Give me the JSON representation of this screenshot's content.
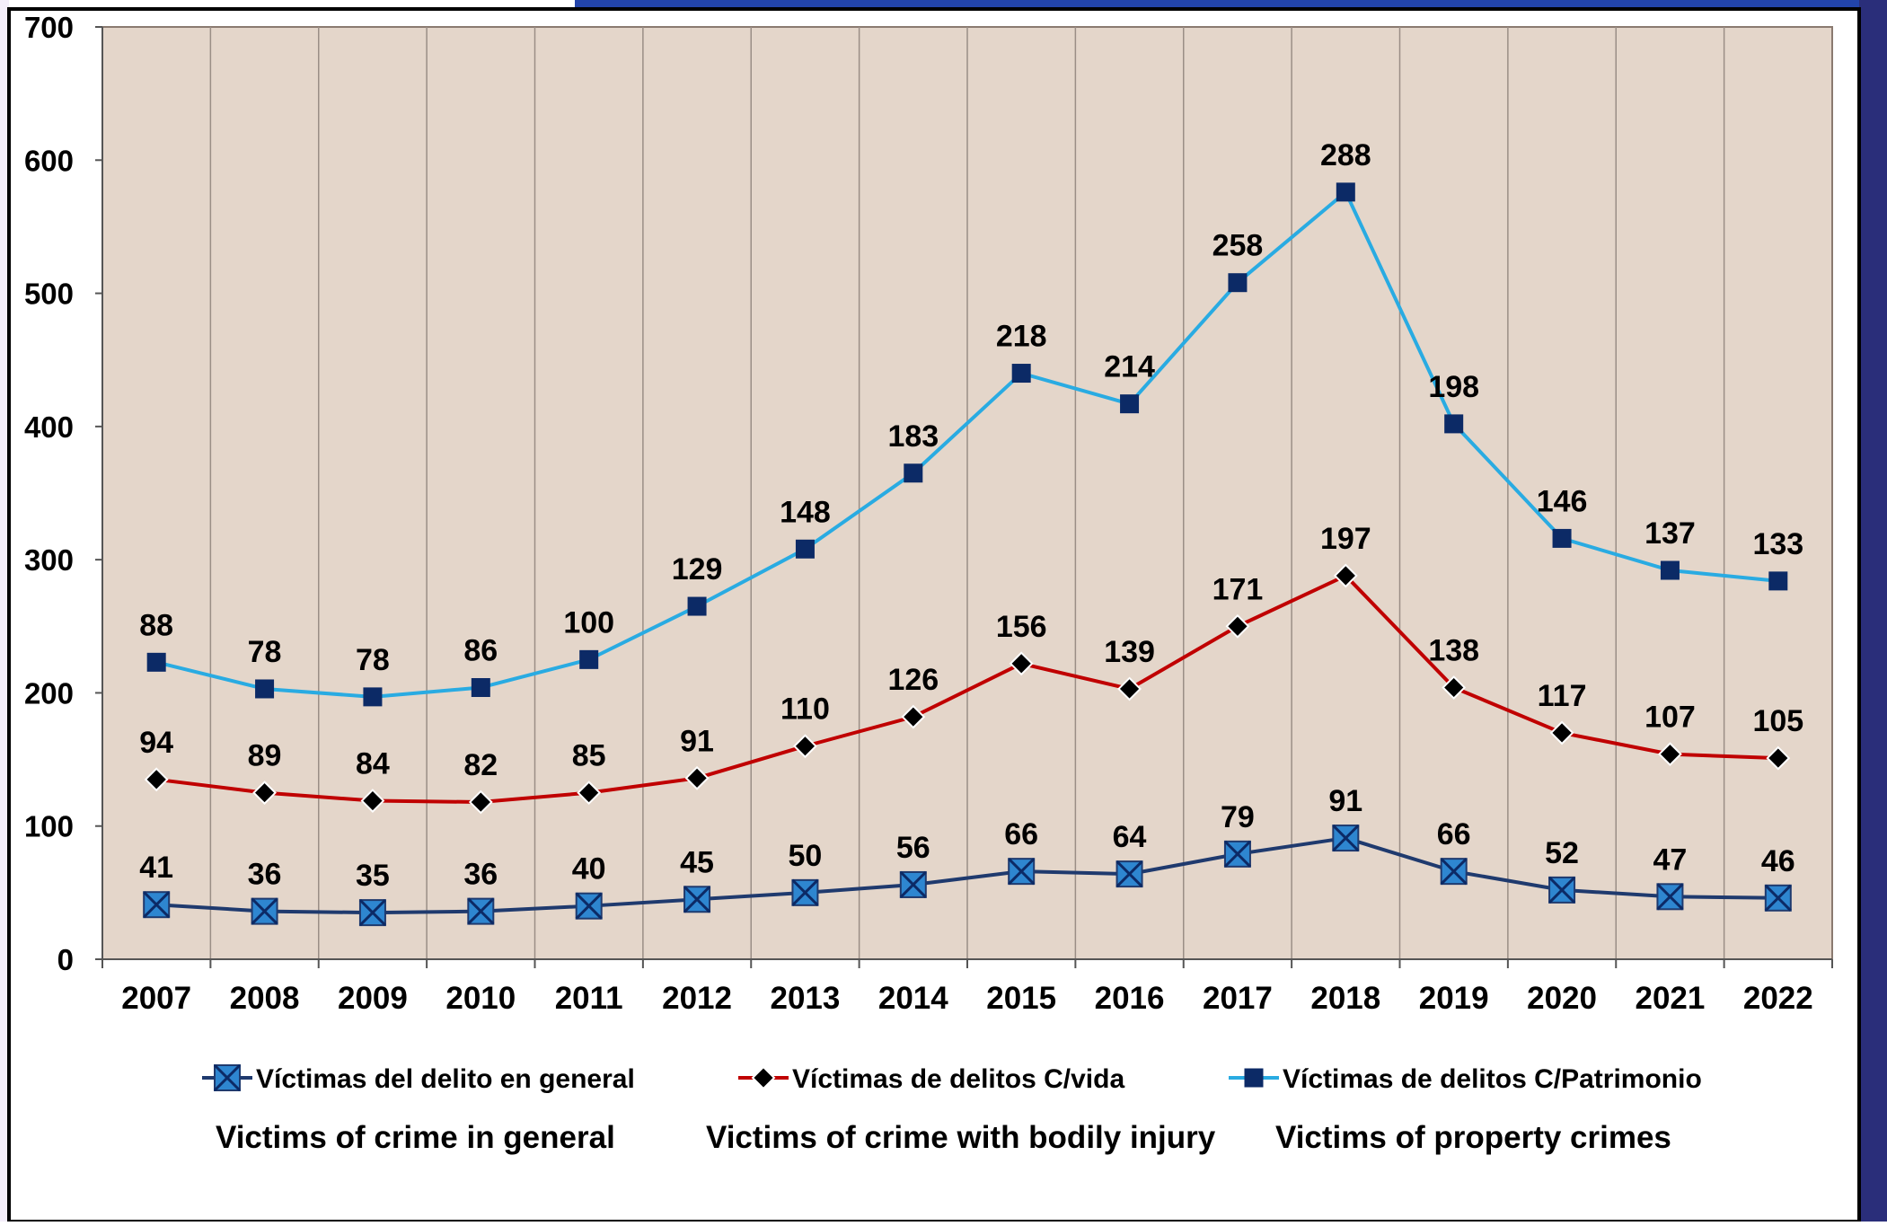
{
  "chart_data": {
    "type": "line",
    "categories": [
      "2007",
      "2008",
      "2009",
      "2010",
      "2011",
      "2012",
      "2013",
      "2014",
      "2015",
      "2016",
      "2017",
      "2018",
      "2019",
      "2020",
      "2021",
      "2022"
    ],
    "ylim": [
      0,
      700
    ],
    "yticks": [
      0,
      100,
      200,
      300,
      400,
      500,
      600,
      700
    ],
    "grid": "vertical",
    "legend_position": "bottom",
    "plot_background": "#e4d6ca",
    "series": [
      {
        "name": "Víctimas del delito en general",
        "translation": "Victims of crime in general",
        "color": "#1f3a6e",
        "marker": "x-square",
        "marker_color": "#2e86d0",
        "values": [
          41,
          36,
          35,
          36,
          40,
          45,
          50,
          56,
          66,
          64,
          79,
          91,
          66,
          52,
          47,
          46
        ],
        "labels": [
          "41",
          "36",
          "35",
          "36",
          "40",
          "45",
          "50",
          "56",
          "66",
          "64",
          "79",
          "91",
          "66",
          "52",
          "47",
          "46"
        ]
      },
      {
        "name": "Víctimas de delitos C/vida",
        "translation": "Victims of crime with bodily injury",
        "color": "#c00000",
        "marker": "diamond",
        "marker_color": "#000000",
        "values": [
          135,
          125,
          119,
          118,
          125,
          136,
          160,
          182,
          222,
          203,
          250,
          288,
          204,
          170,
          154,
          151
        ],
        "labels": [
          "94",
          "89",
          "84",
          "82",
          "85",
          "91",
          "110",
          "126",
          "156",
          "139",
          "171",
          "197",
          "138",
          "117",
          "107",
          "105"
        ]
      },
      {
        "name": "Víctimas de delitos C/Patrimonio",
        "translation": "Victims of property crimes",
        "color": "#29abe2",
        "marker": "square",
        "marker_color": "#0c2a66",
        "values": [
          223,
          203,
          197,
          204,
          225,
          265,
          308,
          365,
          440,
          417,
          508,
          576,
          402,
          316,
          292,
          284
        ],
        "labels": [
          "88",
          "78",
          "78",
          "86",
          "100",
          "129",
          "148",
          "183",
          "218",
          "214",
          "258",
          "288",
          "198",
          "146",
          "137",
          "133"
        ]
      }
    ]
  }
}
